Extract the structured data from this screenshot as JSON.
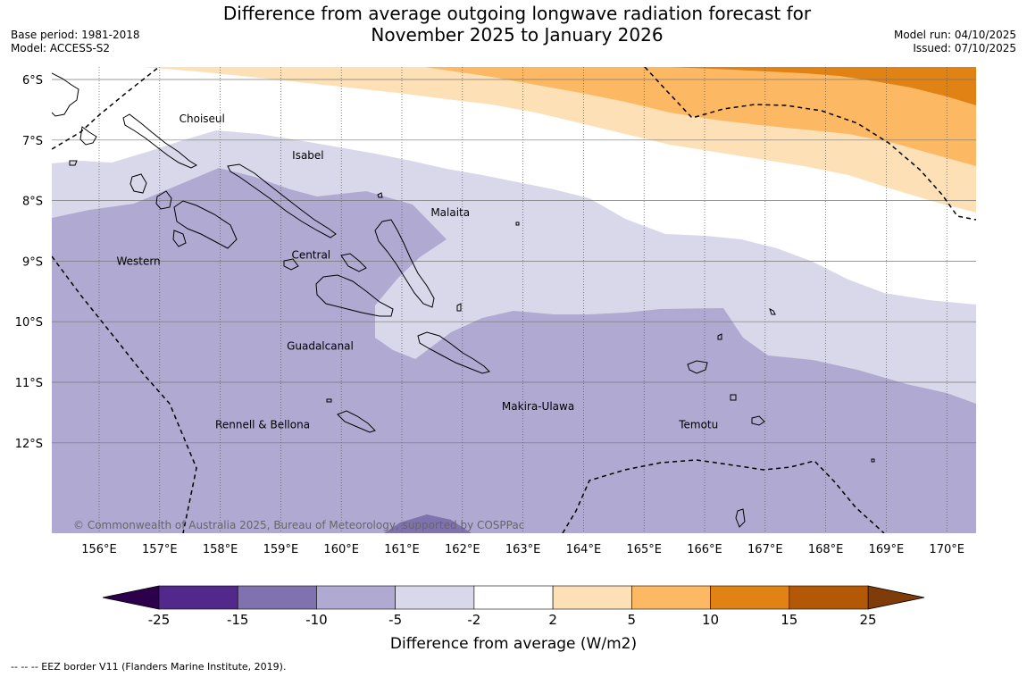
{
  "title": {
    "line1": "Difference from average outgoing longwave radiation forecast for",
    "line2": "November 2025 to January 2026"
  },
  "meta_left": {
    "base_period": "Base period: 1981-2018",
    "model": "Model: ACCESS-S2"
  },
  "meta_right": {
    "model_run": "Model run: 04/10/2025",
    "issued": "Issued: 07/10/2025"
  },
  "copyright": "© Commonwealth of Australia 2025, Bureau of Meteorology, supported by COSPPac",
  "eez_note": "--  --  -- EEZ border V11 (Flanders Marine Institute, 2019).",
  "axes": {
    "lon_labels": [
      "156°E",
      "157°E",
      "158°E",
      "159°E",
      "160°E",
      "161°E",
      "162°E",
      "163°E",
      "164°E",
      "165°E",
      "166°E",
      "167°E",
      "168°E",
      "169°E",
      "170°E"
    ],
    "lat_labels": [
      "6°S",
      "7°S",
      "8°S",
      "9°S",
      "10°S",
      "11°S",
      "12°S"
    ],
    "lon_values": [
      156,
      157,
      158,
      159,
      160,
      161,
      162,
      163,
      164,
      165,
      166,
      167,
      168,
      169,
      170
    ],
    "lat_values": [
      -6,
      -7,
      -8,
      -9,
      -10,
      -11,
      -12
    ],
    "lon_range": [
      155.2,
      170.5
    ],
    "lat_range": [
      -13.5,
      -5.8
    ]
  },
  "provinces": [
    {
      "name": "Choiseul",
      "lon": 157.7,
      "lat": -6.65
    },
    {
      "name": "Isabel",
      "lon": 159.45,
      "lat": -7.25
    },
    {
      "name": "Malaita",
      "lon": 161.8,
      "lat": -8.2
    },
    {
      "name": "Western",
      "lon": 156.65,
      "lat": -9.0
    },
    {
      "name": "Central",
      "lon": 159.5,
      "lat": -8.9
    },
    {
      "name": "Guadalcanal",
      "lon": 159.65,
      "lat": -10.4
    },
    {
      "name": "Makira-Ulawa",
      "lon": 163.25,
      "lat": -11.4
    },
    {
      "name": "Temotu",
      "lon": 165.9,
      "lat": -11.7
    },
    {
      "name": "Rennell & Bellona",
      "lon": 158.7,
      "lat": -11.7
    }
  ],
  "colorbar": {
    "label": "Difference from average (W/m2)",
    "ticks": [
      "-25",
      "-15",
      "-10",
      "-5",
      "-2",
      "2",
      "5",
      "10",
      "15",
      "25"
    ],
    "colors": [
      "#52288a",
      "#8072ae",
      "#b0a9d2",
      "#d8d8ea",
      "#ffffff",
      "#fee0b6",
      "#fdb863",
      "#e08214",
      "#b35806"
    ],
    "extend_low_color": "#2d004b",
    "extend_high_color": "#7f3b08"
  },
  "fill_colors": {
    "minus15_to_minus10": "#8072ae",
    "minus10_to_minus5": "#b0a9d2",
    "minus5_to_minus2": "#d8d8ea",
    "minus2_to_2": "#ffffff",
    "plus2_to_5": "#fee0b6",
    "plus5_to_10": "#fdb863",
    "plus10_to_15": "#e08214"
  }
}
